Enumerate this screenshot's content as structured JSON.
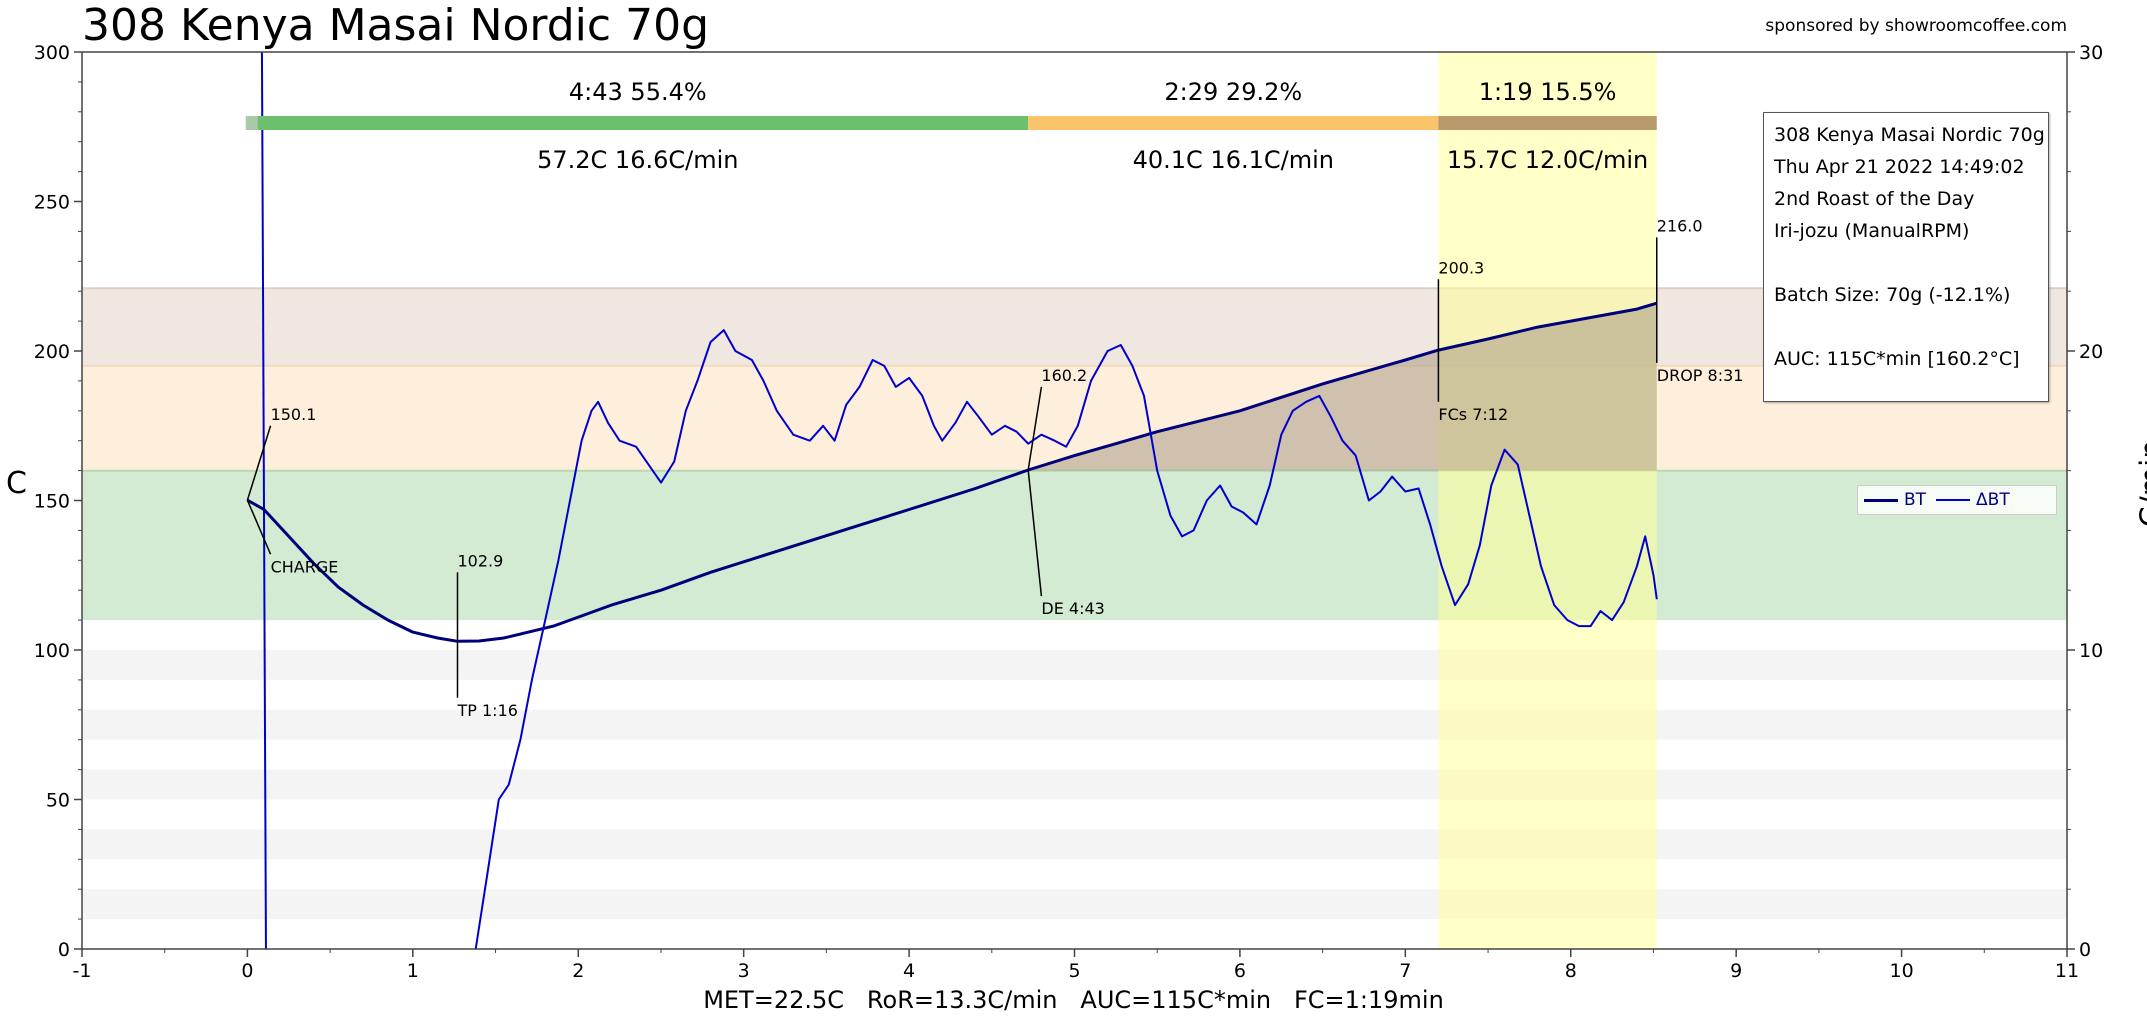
{
  "title": "308 Kenya Masai Nordic 70g",
  "sponsor": "sponsored by showroomcoffee.com",
  "footer": "MET=22.5C   RoR=13.3C/min   AUC=115C*min   FC=1:19min",
  "info_box": [
    "308 Kenya Masai Nordic 70g",
    "Thu Apr 21 2022 14:49:02",
    "2nd Roast of the Day",
    "Iri-jozu (ManualRPM)",
    "",
    "Batch Size: 70g (-12.1%)",
    "",
    "AUC: 115C*min [160.2°C]"
  ],
  "legend": [
    {
      "name": "BT",
      "color": "#00007a"
    },
    {
      "name": "ΔBT",
      "color": "#0000cc"
    }
  ],
  "phases": [
    {
      "time": "4:43",
      "pct": "55.4%",
      "temp": "57.2C",
      "rate": "16.6C/min",
      "start": 0,
      "end": 4.72,
      "color": "#6dbf6d"
    },
    {
      "time": "2:29",
      "pct": "29.2%",
      "temp": "40.1C",
      "rate": "16.1C/min",
      "start": 4.72,
      "end": 7.2,
      "color": "#fbc46a"
    },
    {
      "time": "1:19",
      "pct": "15.5%",
      "temp": "15.7C",
      "rate": "12.0C/min",
      "start": 7.2,
      "end": 8.52,
      "color": "#b99a6c"
    }
  ],
  "chart_data": {
    "type": "line",
    "xlim": [
      -1,
      11
    ],
    "ylim": [
      0,
      300
    ],
    "y2lim": [
      0,
      30
    ],
    "ylabel": "C",
    "y2label": "C/min",
    "x_ticks": [
      -1,
      0,
      1,
      2,
      3,
      4,
      5,
      6,
      7,
      8,
      9,
      10,
      11
    ],
    "y_ticks": [
      0,
      50,
      100,
      150,
      200,
      250,
      300
    ],
    "y2_ticks": [
      0,
      10,
      20,
      30
    ],
    "bands": [
      {
        "y0": 110,
        "y1": 160,
        "color": "#a8d5a8"
      },
      {
        "y0": 160,
        "y1": 195,
        "color": "#fde0bb"
      },
      {
        "y0": 195,
        "y1": 221,
        "color": "#e2cfc4"
      }
    ],
    "fc_window": {
      "x0": 7.2,
      "x1": 8.52,
      "color": "#ffff99"
    },
    "charge_line_x": 0.1,
    "series": [
      {
        "name": "BT",
        "axis": "left",
        "color": "#00007a",
        "points": [
          [
            0,
            150.1
          ],
          [
            0.1,
            147
          ],
          [
            0.25,
            138
          ],
          [
            0.4,
            129
          ],
          [
            0.55,
            121
          ],
          [
            0.7,
            115
          ],
          [
            0.85,
            110
          ],
          [
            1.0,
            106
          ],
          [
            1.15,
            104
          ],
          [
            1.27,
            102.9
          ],
          [
            1.4,
            103
          ],
          [
            1.55,
            104
          ],
          [
            1.7,
            106
          ],
          [
            1.85,
            108
          ],
          [
            2.0,
            111
          ],
          [
            2.2,
            115
          ],
          [
            2.5,
            120
          ],
          [
            2.8,
            126
          ],
          [
            3.2,
            133
          ],
          [
            3.6,
            140
          ],
          [
            4.0,
            147
          ],
          [
            4.4,
            154
          ],
          [
            4.72,
            160.2
          ],
          [
            5.0,
            165
          ],
          [
            5.5,
            173
          ],
          [
            6.0,
            180
          ],
          [
            6.5,
            189
          ],
          [
            7.0,
            197
          ],
          [
            7.2,
            200.3
          ],
          [
            7.5,
            204
          ],
          [
            7.8,
            208
          ],
          [
            8.1,
            211
          ],
          [
            8.4,
            214
          ],
          [
            8.52,
            216.0
          ]
        ]
      },
      {
        "name": "ΔBT",
        "axis": "right",
        "color": "#0000cc",
        "points": [
          [
            1.38,
            0
          ],
          [
            1.45,
            2.5
          ],
          [
            1.52,
            5.0
          ],
          [
            1.58,
            5.5
          ],
          [
            1.65,
            7.0
          ],
          [
            1.72,
            9.0
          ],
          [
            1.8,
            11.0
          ],
          [
            1.88,
            13.0
          ],
          [
            1.95,
            15.0
          ],
          [
            2.02,
            17.0
          ],
          [
            2.08,
            18.0
          ],
          [
            2.12,
            18.3
          ],
          [
            2.18,
            17.6
          ],
          [
            2.25,
            17.0
          ],
          [
            2.35,
            16.8
          ],
          [
            2.45,
            16.0
          ],
          [
            2.5,
            15.6
          ],
          [
            2.58,
            16.3
          ],
          [
            2.65,
            18.0
          ],
          [
            2.72,
            19.0
          ],
          [
            2.8,
            20.3
          ],
          [
            2.88,
            20.7
          ],
          [
            2.95,
            20.0
          ],
          [
            3.05,
            19.7
          ],
          [
            3.12,
            19.0
          ],
          [
            3.2,
            18.0
          ],
          [
            3.3,
            17.2
          ],
          [
            3.4,
            17.0
          ],
          [
            3.48,
            17.5
          ],
          [
            3.55,
            17.0
          ],
          [
            3.62,
            18.2
          ],
          [
            3.7,
            18.8
          ],
          [
            3.78,
            19.7
          ],
          [
            3.85,
            19.5
          ],
          [
            3.92,
            18.8
          ],
          [
            4.0,
            19.1
          ],
          [
            4.08,
            18.5
          ],
          [
            4.15,
            17.5
          ],
          [
            4.2,
            17.0
          ],
          [
            4.28,
            17.6
          ],
          [
            4.35,
            18.3
          ],
          [
            4.42,
            17.8
          ],
          [
            4.5,
            17.2
          ],
          [
            4.58,
            17.5
          ],
          [
            4.65,
            17.3
          ],
          [
            4.72,
            16.9
          ],
          [
            4.8,
            17.2
          ],
          [
            4.88,
            17.0
          ],
          [
            4.95,
            16.8
          ],
          [
            5.02,
            17.5
          ],
          [
            5.1,
            19.0
          ],
          [
            5.2,
            20.0
          ],
          [
            5.28,
            20.2
          ],
          [
            5.35,
            19.5
          ],
          [
            5.42,
            18.5
          ],
          [
            5.5,
            16.0
          ],
          [
            5.58,
            14.5
          ],
          [
            5.65,
            13.8
          ],
          [
            5.72,
            14.0
          ],
          [
            5.8,
            15.0
          ],
          [
            5.88,
            15.5
          ],
          [
            5.95,
            14.8
          ],
          [
            6.02,
            14.6
          ],
          [
            6.1,
            14.2
          ],
          [
            6.18,
            15.5
          ],
          [
            6.25,
            17.2
          ],
          [
            6.32,
            18.0
          ],
          [
            6.4,
            18.3
          ],
          [
            6.48,
            18.5
          ],
          [
            6.55,
            17.8
          ],
          [
            6.62,
            17.0
          ],
          [
            6.7,
            16.5
          ],
          [
            6.78,
            15.0
          ],
          [
            6.85,
            15.3
          ],
          [
            6.92,
            15.8
          ],
          [
            7.0,
            15.3
          ],
          [
            7.08,
            15.4
          ],
          [
            7.15,
            14.2
          ],
          [
            7.22,
            12.8
          ],
          [
            7.3,
            11.5
          ],
          [
            7.38,
            12.2
          ],
          [
            7.45,
            13.5
          ],
          [
            7.52,
            15.5
          ],
          [
            7.6,
            16.7
          ],
          [
            7.68,
            16.2
          ],
          [
            7.75,
            14.5
          ],
          [
            7.82,
            12.8
          ],
          [
            7.9,
            11.5
          ],
          [
            7.98,
            11.0
          ],
          [
            8.05,
            10.8
          ],
          [
            8.12,
            10.8
          ],
          [
            8.18,
            11.3
          ],
          [
            8.25,
            11.0
          ],
          [
            8.32,
            11.6
          ],
          [
            8.4,
            12.8
          ],
          [
            8.45,
            13.8
          ],
          [
            8.5,
            12.5
          ],
          [
            8.52,
            11.7
          ]
        ]
      }
    ],
    "annotations": [
      {
        "label": "150.1",
        "x": 0,
        "y": 150.1,
        "tx": 0.14,
        "ty": 177,
        "type": "above"
      },
      {
        "label": "CHARGE",
        "x": 0,
        "y": 150.1,
        "tx": 0.14,
        "ty": 126,
        "type": "below"
      },
      {
        "label": "102.9",
        "x": 1.27,
        "y": 102.9,
        "tx": 1.27,
        "ty": 128,
        "type": "above"
      },
      {
        "label": "TP 1:16",
        "x": 1.27,
        "y": 102.9,
        "tx": 1.27,
        "ty": 78,
        "type": "below"
      },
      {
        "label": "160.2",
        "x": 4.72,
        "y": 160.2,
        "tx": 4.8,
        "ty": 190,
        "type": "above"
      },
      {
        "label": "DE 4:43",
        "x": 4.72,
        "y": 160.2,
        "tx": 4.8,
        "ty": 112,
        "type": "below"
      },
      {
        "label": "200.3",
        "x": 7.2,
        "y": 200.3,
        "tx": 7.2,
        "ty": 226,
        "type": "above"
      },
      {
        "label": "FCs 7:12",
        "x": 7.2,
        "y": 200.3,
        "tx": 7.2,
        "ty": 177,
        "type": "below"
      },
      {
        "label": "216.0",
        "x": 8.52,
        "y": 216.0,
        "tx": 8.52,
        "ty": 240,
        "type": "above"
      },
      {
        "label": "DROP 8:31",
        "x": 8.52,
        "y": 216.0,
        "tx": 8.52,
        "ty": 190,
        "type": "below"
      }
    ]
  }
}
